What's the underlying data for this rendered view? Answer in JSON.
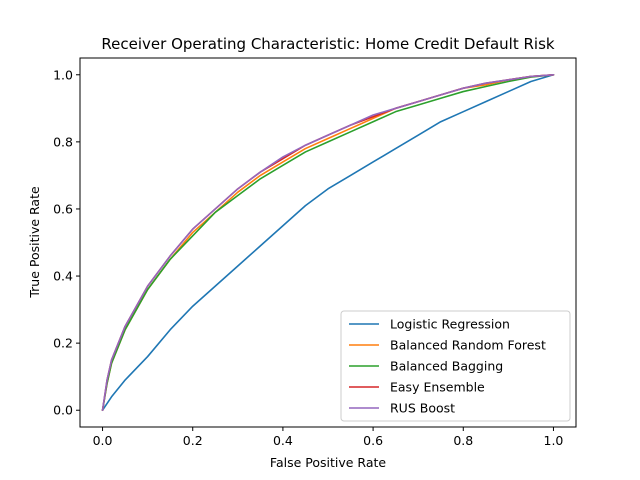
{
  "chart_data": {
    "type": "line",
    "title": "Receiver Operating Characteristic: Home Credit Default Risk",
    "xlabel": "False Positive Rate",
    "ylabel": "True Positive Rate",
    "xlim": [
      -0.05,
      1.05
    ],
    "ylim": [
      -0.05,
      1.05
    ],
    "xticks": [
      "0.0",
      "0.2",
      "0.4",
      "0.6",
      "0.8",
      "1.0"
    ],
    "yticks": [
      "0.0",
      "0.2",
      "0.4",
      "0.6",
      "0.8",
      "1.0"
    ],
    "grid": false,
    "legend_position": "lower-right",
    "series": [
      {
        "name": "Logistic Regression",
        "color": "#1f77b4",
        "x": [
          0,
          0.02,
          0.05,
          0.1,
          0.15,
          0.2,
          0.25,
          0.3,
          0.35,
          0.4,
          0.45,
          0.5,
          0.55,
          0.6,
          0.65,
          0.7,
          0.75,
          0.8,
          0.85,
          0.9,
          0.95,
          1.0
        ],
        "y": [
          0,
          0.04,
          0.09,
          0.16,
          0.24,
          0.31,
          0.37,
          0.43,
          0.49,
          0.55,
          0.61,
          0.66,
          0.7,
          0.74,
          0.78,
          0.82,
          0.86,
          0.89,
          0.92,
          0.95,
          0.98,
          1.0
        ]
      },
      {
        "name": "Balanced Random Forest",
        "color": "#ff7f0e",
        "x": [
          0,
          0.01,
          0.02,
          0.05,
          0.1,
          0.15,
          0.2,
          0.25,
          0.3,
          0.35,
          0.4,
          0.45,
          0.5,
          0.55,
          0.6,
          0.65,
          0.7,
          0.75,
          0.8,
          0.85,
          0.9,
          0.95,
          1.0
        ],
        "y": [
          0,
          0.08,
          0.14,
          0.24,
          0.36,
          0.45,
          0.53,
          0.59,
          0.65,
          0.7,
          0.74,
          0.78,
          0.81,
          0.84,
          0.87,
          0.9,
          0.92,
          0.94,
          0.96,
          0.97,
          0.985,
          0.995,
          1.0
        ]
      },
      {
        "name": "Balanced Bagging",
        "color": "#2ca02c",
        "x": [
          0,
          0.01,
          0.02,
          0.05,
          0.1,
          0.15,
          0.2,
          0.25,
          0.3,
          0.35,
          0.4,
          0.45,
          0.5,
          0.55,
          0.6,
          0.65,
          0.7,
          0.75,
          0.8,
          0.85,
          0.9,
          0.95,
          1.0
        ],
        "y": [
          0,
          0.08,
          0.14,
          0.24,
          0.36,
          0.45,
          0.52,
          0.59,
          0.64,
          0.69,
          0.73,
          0.77,
          0.8,
          0.83,
          0.86,
          0.89,
          0.91,
          0.93,
          0.95,
          0.965,
          0.98,
          0.993,
          1.0
        ]
      },
      {
        "name": "Easy Ensemble",
        "color": "#d62728",
        "x": [
          0,
          0.01,
          0.02,
          0.05,
          0.1,
          0.15,
          0.2,
          0.25,
          0.3,
          0.35,
          0.4,
          0.45,
          0.5,
          0.55,
          0.6,
          0.65,
          0.7,
          0.75,
          0.8,
          0.85,
          0.9,
          0.95,
          1.0
        ],
        "y": [
          0,
          0.09,
          0.15,
          0.25,
          0.37,
          0.46,
          0.54,
          0.6,
          0.66,
          0.71,
          0.75,
          0.79,
          0.82,
          0.85,
          0.875,
          0.9,
          0.92,
          0.94,
          0.96,
          0.975,
          0.985,
          0.995,
          1.0
        ]
      },
      {
        "name": "RUS Boost",
        "color": "#9467bd",
        "x": [
          0,
          0.01,
          0.02,
          0.05,
          0.1,
          0.15,
          0.2,
          0.25,
          0.3,
          0.35,
          0.4,
          0.45,
          0.5,
          0.55,
          0.6,
          0.65,
          0.7,
          0.75,
          0.8,
          0.85,
          0.9,
          0.95,
          1.0
        ],
        "y": [
          0,
          0.09,
          0.15,
          0.25,
          0.37,
          0.46,
          0.54,
          0.6,
          0.66,
          0.71,
          0.755,
          0.79,
          0.82,
          0.85,
          0.88,
          0.9,
          0.92,
          0.94,
          0.96,
          0.975,
          0.985,
          0.995,
          1.0
        ]
      }
    ]
  }
}
